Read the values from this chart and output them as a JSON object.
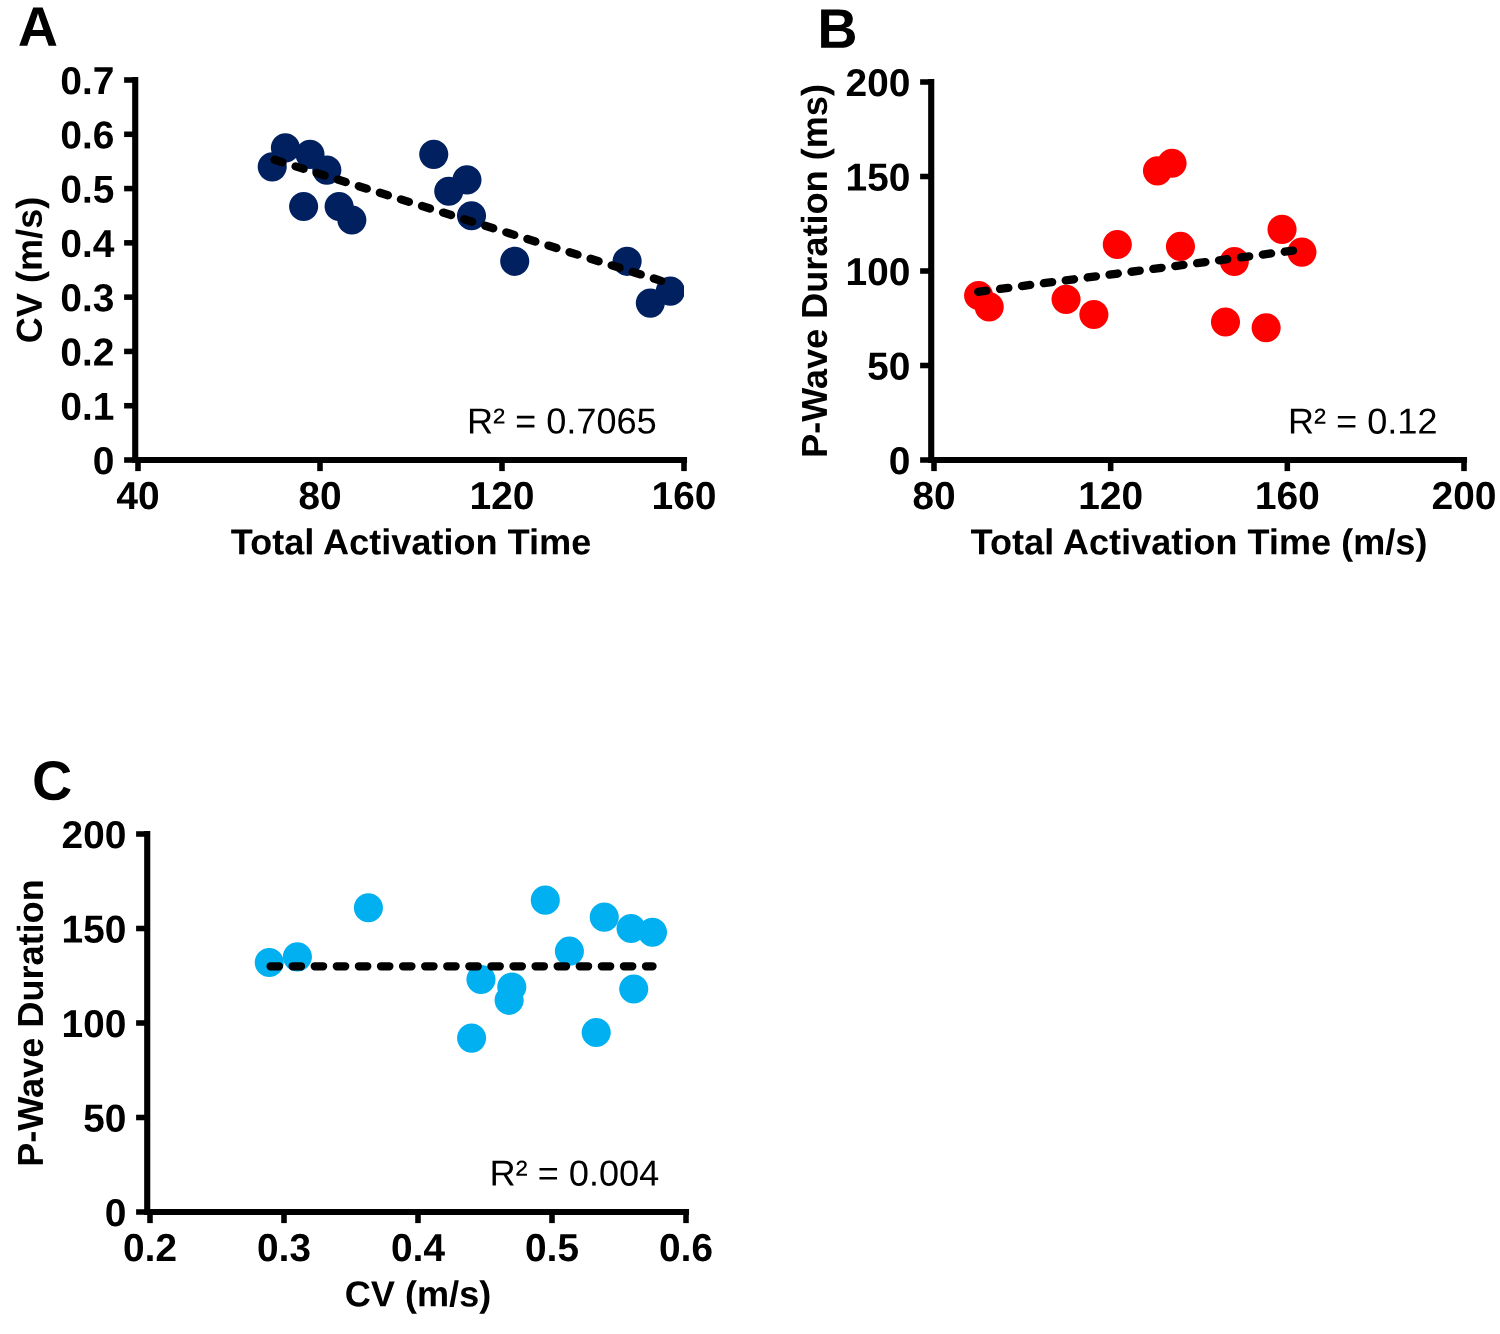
{
  "chart_data": [
    {
      "type": "scatter",
      "title": "A",
      "xlabel": "Total Activation Time",
      "ylabel": "CV (m/s)",
      "xlim": [
        40,
        160
      ],
      "ylim": [
        0,
        0.7
      ],
      "xticks": [
        40,
        80,
        120,
        160
      ],
      "yticks": [
        0,
        0.1,
        0.2,
        0.3,
        0.4,
        0.5,
        0.6,
        0.7
      ],
      "grid": false,
      "legend": false,
      "annotations": [
        "R² = 0.7065"
      ],
      "series": [
        {
          "marker": "circle",
          "color": "#002060",
          "x": [
            69.5,
            72.4,
            76.4,
            77.8,
            81.5,
            84.2,
            87,
            105,
            108.3,
            112.3,
            113.3,
            122.8,
            147.5,
            152.6,
            157
          ],
          "values": [
            0.54,
            0.575,
            0.467,
            0.563,
            0.534,
            0.467,
            0.442,
            0.563,
            0.495,
            0.516,
            0.45,
            0.366,
            0.366,
            0.289,
            0.311
          ]
        },
        {
          "type": "line",
          "line_style": "dotted",
          "marker": "none",
          "color": "#000000",
          "x": [
            70,
            155
          ],
          "values": [
            0.553,
            0.33
          ]
        }
      ]
    },
    {
      "type": "scatter",
      "title": "B",
      "xlabel": "Total Activation Time (m/s)",
      "ylabel": "P-Wave Duration (ms)",
      "xlim": [
        80,
        200
      ],
      "ylim": [
        0,
        200
      ],
      "xticks": [
        80,
        120,
        160,
        200
      ],
      "yticks": [
        0,
        50,
        100,
        150,
        200
      ],
      "grid": false,
      "legend": false,
      "annotations": [
        "R² = 0.12"
      ],
      "series": [
        {
          "marker": "circle",
          "color": "#ff0000",
          "x": [
            90.1,
            92.5,
            109.9,
            116.2,
            121.5,
            130.6,
            133.9,
            135.8,
            146,
            148,
            155.2,
            158.8,
            163.3
          ],
          "values": [
            87,
            81,
            85,
            77,
            114,
            153,
            157,
            113,
            73,
            105,
            70,
            122,
            110
          ]
        },
        {
          "type": "line",
          "line_style": "dotted",
          "marker": "none",
          "color": "#000000",
          "x": [
            90,
            162
          ],
          "values": [
            89,
            111
          ]
        }
      ]
    },
    {
      "type": "scatter",
      "title": "C",
      "xlabel": "CV (m/s)",
      "ylabel": "P-Wave Duration",
      "xlim": [
        0.2,
        0.6
      ],
      "ylim": [
        0,
        200
      ],
      "xticks": [
        0.2,
        0.3,
        0.4,
        0.5,
        0.6
      ],
      "yticks": [
        0,
        50,
        100,
        150,
        200
      ],
      "grid": false,
      "legend": false,
      "annotations": [
        "R² = 0.004"
      ],
      "series": [
        {
          "marker": "circle",
          "color": "#00b0f0",
          "x": [
            0.289,
            0.31,
            0.363,
            0.44,
            0.447,
            0.47,
            0.468,
            0.495,
            0.513,
            0.533,
            0.539,
            0.559,
            0.561,
            0.575
          ],
          "values": [
            132,
            135,
            161,
            92,
            123,
            119,
            112,
            165,
            138,
            95,
            156,
            150,
            118,
            148
          ]
        },
        {
          "type": "line",
          "line_style": "dotted",
          "marker": "none",
          "color": "#000000",
          "x": [
            0.29,
            0.575
          ],
          "values": [
            130,
            130
          ]
        }
      ]
    }
  ]
}
